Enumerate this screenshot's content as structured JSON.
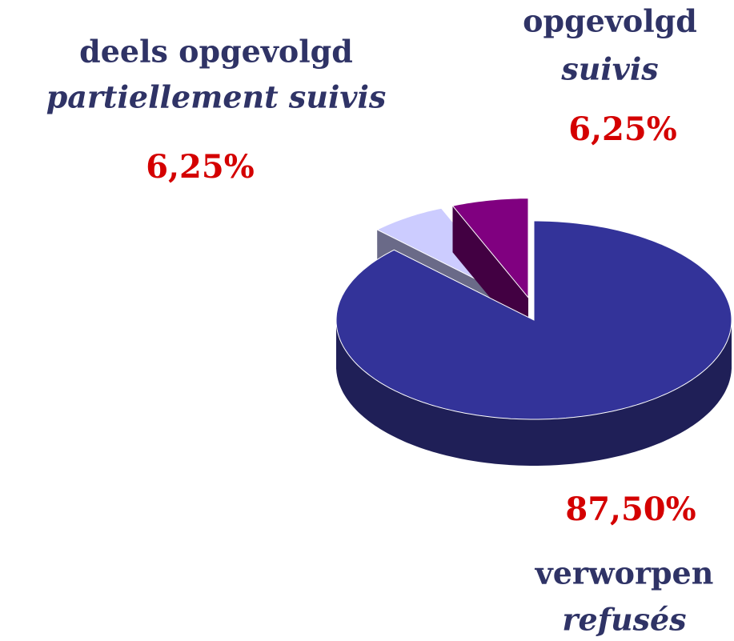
{
  "chart_data": {
    "type": "pie",
    "three_d": true,
    "categories": [
      "verworpen",
      "deels opgevolgd",
      "opgevolgd"
    ],
    "categories_fr": [
      "refusés",
      "partiellement suivis",
      "suivis"
    ],
    "values": [
      87.5,
      6.25,
      6.25
    ],
    "value_labels": [
      "87,50%",
      "6,25%",
      "6,25%"
    ],
    "colors": [
      "#333399",
      "#ccccff",
      "#800080"
    ],
    "side_colors": [
      "#1f1f57",
      "#6a6a88",
      "#420042"
    ]
  }
}
